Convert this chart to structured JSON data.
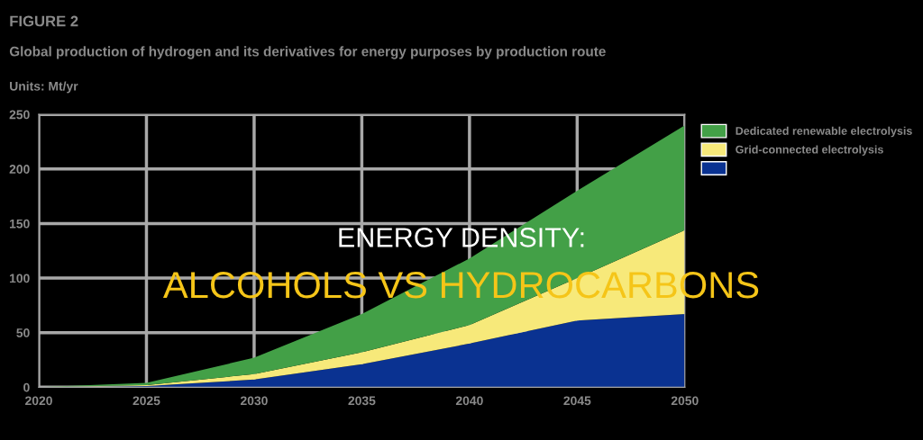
{
  "chart_data": {
    "type": "area",
    "stacked": true,
    "title": "FIGURE 2",
    "subtitle": "Global production of hydrogen and its derivatives for energy purposes by production route",
    "ylabel": "Units: Mt/yr",
    "x": [
      2020,
      2025,
      2030,
      2035,
      2040,
      2045,
      2050
    ],
    "series": [
      {
        "color": "#0a3291",
        "values": [
          0,
          1,
          7,
          21,
          40,
          61,
          67
        ]
      },
      {
        "name": "Grid-connected electrolysis",
        "color": "#f7e97a",
        "values": [
          0,
          1,
          5,
          11,
          17,
          39,
          77
        ]
      },
      {
        "name": "Dedicated renewable electrolysis",
        "color": "#43a047",
        "values": [
          0,
          2,
          15,
          35,
          61,
          80,
          96
        ]
      }
    ],
    "xlim": [
      2020,
      2050
    ],
    "xticks": [
      2020,
      2025,
      2030,
      2035,
      2040,
      2045,
      2050
    ],
    "ylim": [
      0,
      250
    ],
    "yticks": [
      0,
      50,
      100,
      150,
      200,
      250
    ],
    "grid": true,
    "legend": "top right",
    "annotations": [
      "ENERGY DENSITY:",
      "ALCOHOLS VS HYDROCARBONS"
    ]
  }
}
